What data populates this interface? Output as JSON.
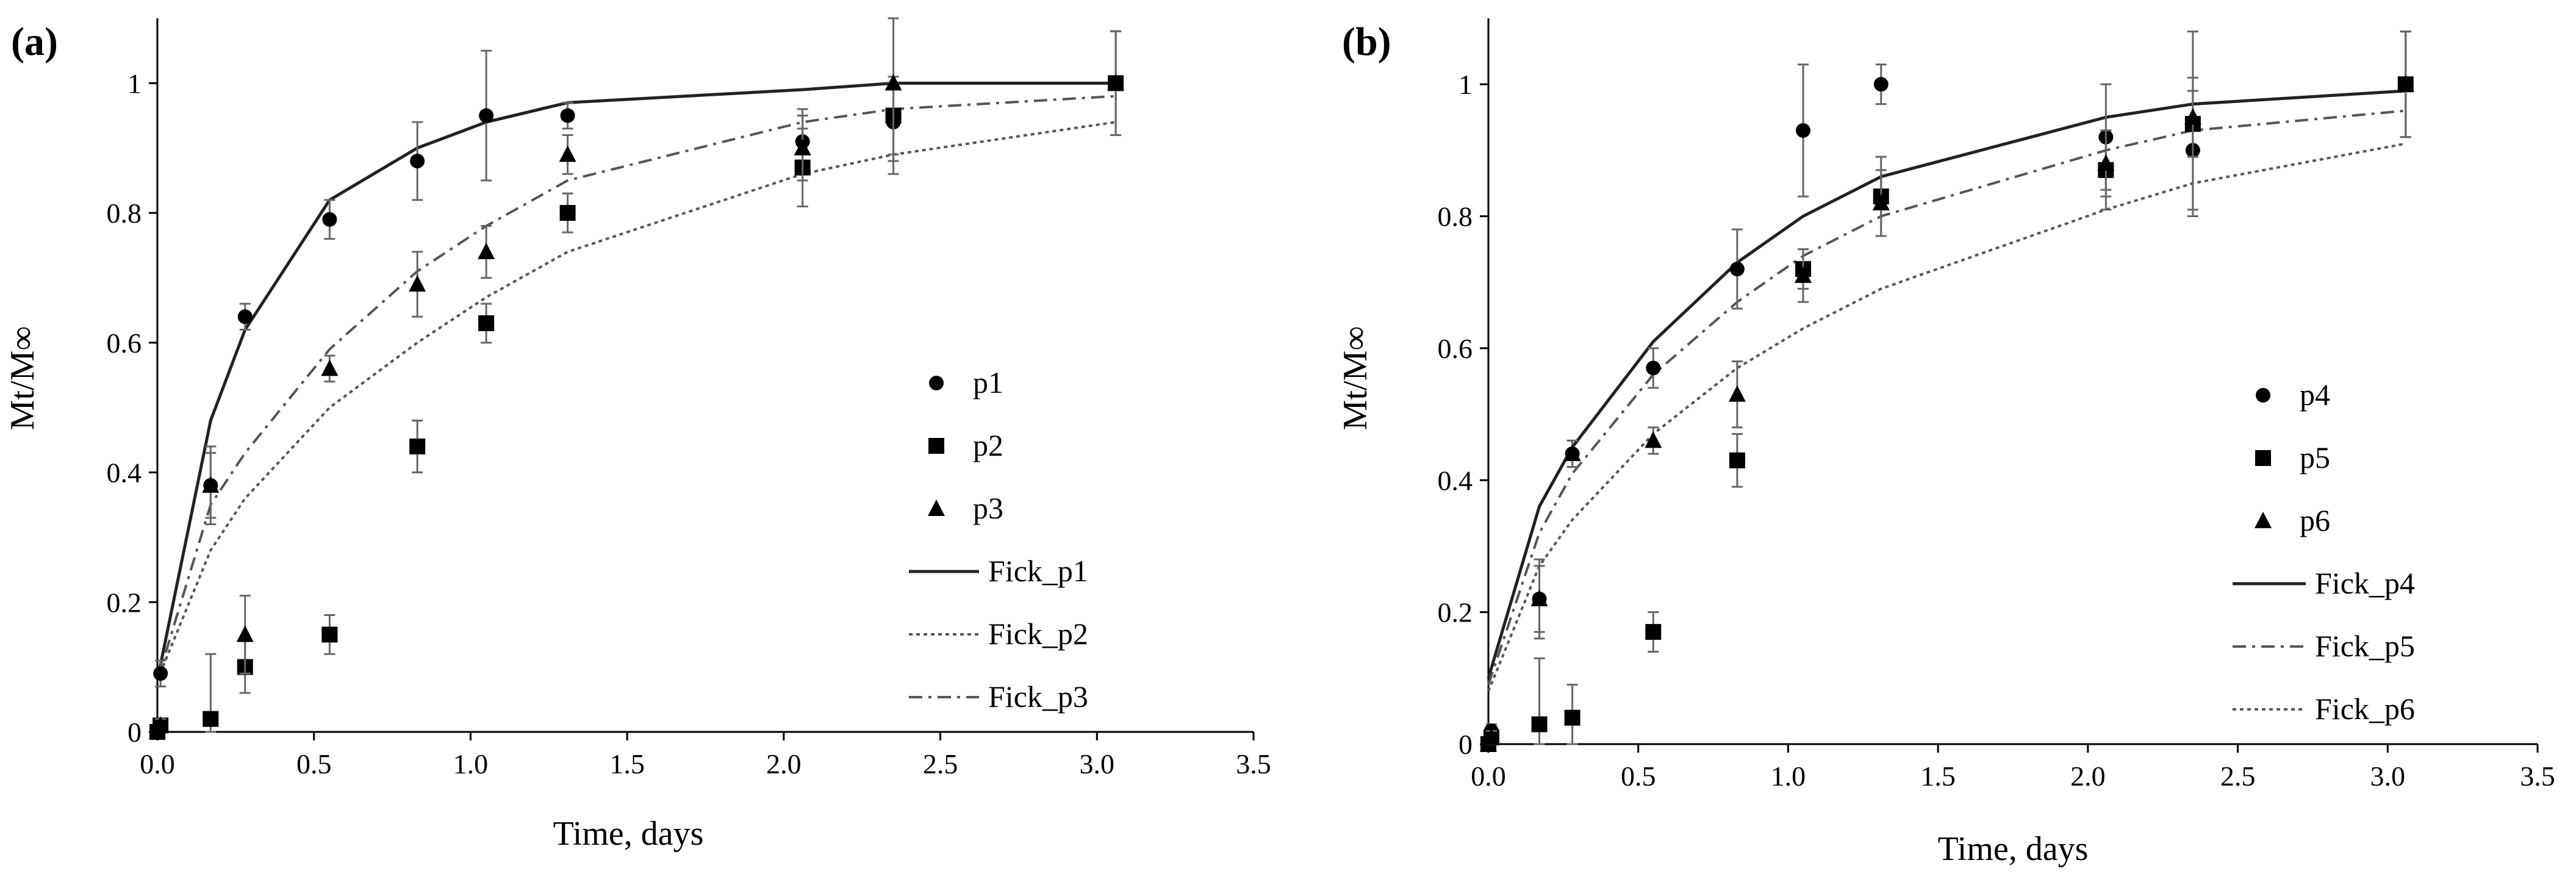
{
  "chart_data": [
    {
      "panel_label": "(a)",
      "type": "scatter",
      "xlabel": "Time, days",
      "ylabel": "Mt/M∞",
      "xlim": [
        0,
        3.5
      ],
      "ylim": [
        0,
        1.1
      ],
      "xticks": [
        "0.0",
        "0.5",
        "1.0",
        "1.5",
        "2.0",
        "2.5",
        "3.0",
        "3.5"
      ],
      "yticks": [
        "0",
        "0.2",
        "0.4",
        "0.6",
        "0.8",
        "1"
      ],
      "grid": false,
      "legend_position": "right",
      "series": [
        {
          "name": "p1",
          "marker": "circle",
          "x": [
            0,
            0.01,
            0.17,
            0.28,
            0.55,
            0.83,
            1.05,
            1.31,
            2.06,
            2.35,
            3.06
          ],
          "y": [
            0.0,
            0.09,
            0.38,
            0.64,
            0.79,
            0.88,
            0.95,
            0.95,
            0.91,
            0.94,
            1.0
          ],
          "err": [
            0.0,
            0.02,
            0.06,
            0.02,
            0.03,
            0.06,
            0.1,
            0.02,
            0.05,
            0.06,
            0.08
          ]
        },
        {
          "name": "p2",
          "marker": "square",
          "x": [
            0,
            0.01,
            0.17,
            0.28,
            0.55,
            0.83,
            1.05,
            1.31,
            2.06,
            2.35,
            3.06
          ],
          "y": [
            0.0,
            0.01,
            0.02,
            0.1,
            0.15,
            0.44,
            0.63,
            0.8,
            0.87,
            0.95,
            1.0
          ],
          "err": [
            0.0,
            0.01,
            0.1,
            0.04,
            0.03,
            0.04,
            0.03,
            0.03,
            0.06,
            0.06,
            0.08
          ]
        },
        {
          "name": "p3",
          "marker": "triangle",
          "x": [
            0,
            0.01,
            0.17,
            0.28,
            0.55,
            0.83,
            1.05,
            1.31,
            2.06,
            2.35,
            3.06
          ],
          "y": [
            0.0,
            0.01,
            0.38,
            0.15,
            0.56,
            0.69,
            0.74,
            0.89,
            0.9,
            1.0,
            1.0
          ],
          "err": [
            0.0,
            0.01,
            0.05,
            0.06,
            0.02,
            0.05,
            0.04,
            0.03,
            0.05,
            0.14,
            0.08
          ]
        }
      ],
      "fits": [
        {
          "name": "Fick_p1",
          "style": "solid",
          "x": [
            0,
            0.17,
            0.28,
            0.55,
            0.83,
            1.05,
            1.31,
            2.06,
            2.35,
            3.06
          ],
          "y": [
            0.08,
            0.48,
            0.62,
            0.82,
            0.9,
            0.94,
            0.97,
            0.99,
            1.0,
            1.0
          ]
        },
        {
          "name": "Fick_p2",
          "style": "dotted",
          "x": [
            0,
            0.17,
            0.28,
            0.55,
            0.83,
            1.05,
            1.31,
            2.06,
            2.35,
            3.06
          ],
          "y": [
            0.08,
            0.28,
            0.36,
            0.5,
            0.6,
            0.67,
            0.74,
            0.86,
            0.89,
            0.94
          ]
        },
        {
          "name": "Fick_p3",
          "style": "dashdot",
          "x": [
            0,
            0.17,
            0.28,
            0.55,
            0.83,
            1.05,
            1.31,
            2.06,
            2.35,
            3.06
          ],
          "y": [
            0.08,
            0.35,
            0.43,
            0.59,
            0.71,
            0.78,
            0.85,
            0.94,
            0.96,
            0.98
          ]
        }
      ]
    },
    {
      "panel_label": "(b)",
      "type": "scatter",
      "xlabel": "Time, days",
      "ylabel": "Mt/M∞",
      "xlim": [
        0,
        3.5
      ],
      "ylim": [
        0,
        1.1
      ],
      "xticks": [
        "0.0",
        "0.5",
        "1.0",
        "1.5",
        "2.0",
        "2.5",
        "3.0",
        "3.5"
      ],
      "yticks": [
        "0",
        "0.2",
        "0.4",
        "0.6",
        "0.8",
        "1"
      ],
      "grid": false,
      "legend_position": "right",
      "series": [
        {
          "name": "p4",
          "marker": "circle",
          "x": [
            0,
            0.01,
            0.17,
            0.28,
            0.55,
            0.83,
            1.05,
            1.31,
            2.06,
            2.35,
            3.06
          ],
          "y": [
            0.0,
            0.02,
            0.22,
            0.44,
            0.57,
            0.72,
            0.93,
            1.0,
            0.92,
            0.9,
            1.0
          ],
          "err": [
            0.0,
            0.01,
            0.06,
            0.02,
            0.03,
            0.06,
            0.1,
            0.03,
            0.08,
            0.09,
            0.08
          ]
        },
        {
          "name": "p5",
          "marker": "square",
          "x": [
            0,
            0.01,
            0.17,
            0.28,
            0.55,
            0.83,
            1.05,
            1.31,
            2.06,
            2.35,
            3.06
          ],
          "y": [
            0.0,
            0.01,
            0.03,
            0.04,
            0.17,
            0.43,
            0.72,
            0.83,
            0.87,
            0.94,
            1.0
          ],
          "err": [
            0.0,
            0.01,
            0.1,
            0.05,
            0.03,
            0.04,
            0.03,
            0.06,
            0.06,
            0.14,
            0.08
          ]
        },
        {
          "name": "p6",
          "marker": "triangle",
          "x": [
            0,
            0.01,
            0.17,
            0.28,
            0.55,
            0.83,
            1.05,
            1.31,
            2.06,
            2.35,
            3.06
          ],
          "y": [
            0.0,
            0.01,
            0.22,
            0.44,
            0.46,
            0.53,
            0.71,
            0.82,
            0.88,
            0.95,
            1.0
          ],
          "err": [
            0.0,
            0.01,
            0.05,
            0.02,
            0.02,
            0.05,
            0.04,
            0.05,
            0.05,
            0.06,
            0.08
          ]
        }
      ],
      "fits": [
        {
          "name": "Fick_p4",
          "style": "solid",
          "x": [
            0,
            0.17,
            0.28,
            0.55,
            0.83,
            1.05,
            1.31,
            2.06,
            2.35,
            3.06
          ],
          "y": [
            0.1,
            0.36,
            0.45,
            0.61,
            0.73,
            0.8,
            0.86,
            0.95,
            0.97,
            0.99
          ]
        },
        {
          "name": "Fick_p5",
          "style": "dashdot",
          "x": [
            0,
            0.17,
            0.28,
            0.55,
            0.83,
            1.05,
            1.31,
            2.06,
            2.35,
            3.06
          ],
          "y": [
            0.09,
            0.32,
            0.41,
            0.56,
            0.67,
            0.74,
            0.8,
            0.9,
            0.93,
            0.96
          ]
        },
        {
          "name": "Fick_p6",
          "style": "dotted",
          "x": [
            0,
            0.17,
            0.28,
            0.55,
            0.83,
            1.05,
            1.31,
            2.06,
            2.35,
            3.06
          ],
          "y": [
            0.08,
            0.27,
            0.34,
            0.47,
            0.57,
            0.63,
            0.69,
            0.81,
            0.85,
            0.91
          ]
        }
      ]
    }
  ]
}
